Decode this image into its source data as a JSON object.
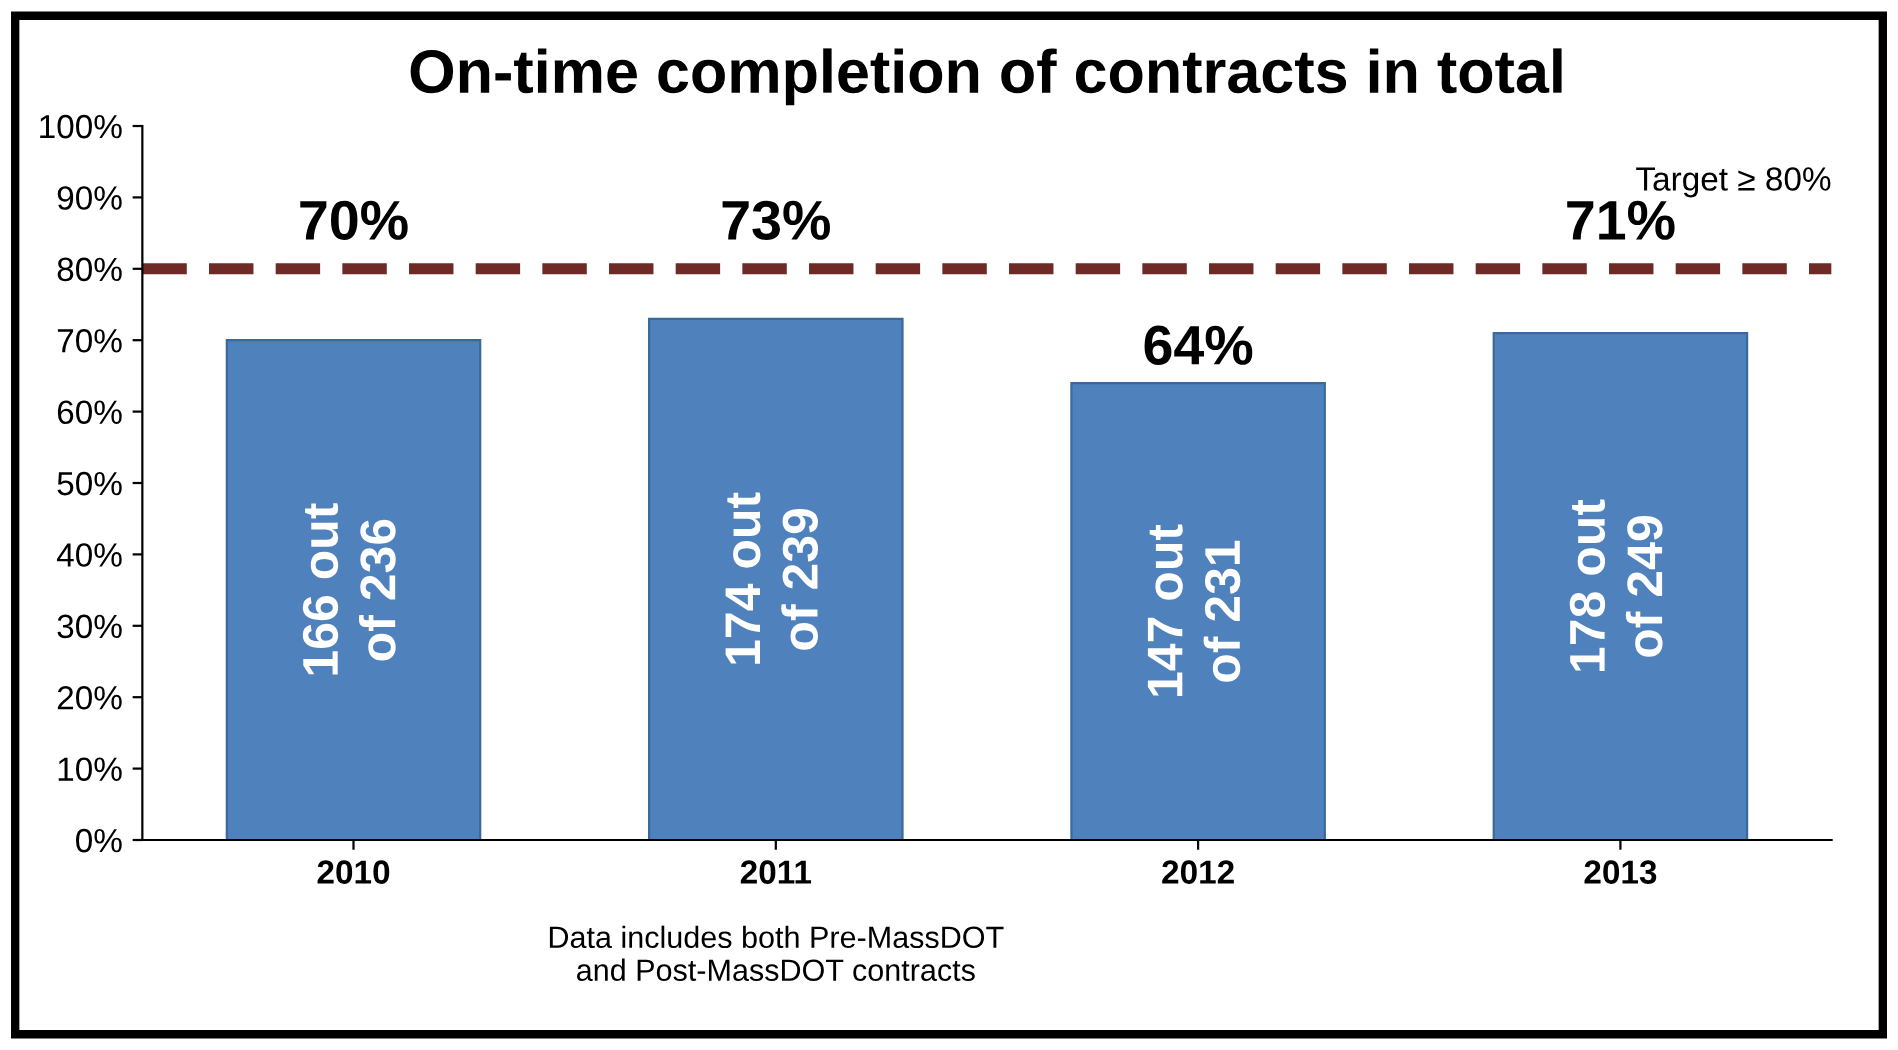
{
  "chart_data": {
    "type": "bar",
    "title": "On-time completion of contracts in total",
    "categories": [
      "2010",
      "2011",
      "2012",
      "2013"
    ],
    "values": [
      70,
      73,
      64,
      71
    ],
    "value_labels": [
      "70%",
      "73%",
      "64%",
      "71%"
    ],
    "color": "#4f81bd",
    "ylim": [
      0,
      100
    ],
    "yticks": [
      {
        "value": 0,
        "label": "0%"
      },
      {
        "value": 10,
        "label": "10%"
      },
      {
        "value": 20,
        "label": "20%"
      },
      {
        "value": 30,
        "label": "30%"
      },
      {
        "value": 40,
        "label": "40%"
      },
      {
        "value": 50,
        "label": "50%"
      },
      {
        "value": 60,
        "label": "60%"
      },
      {
        "value": 70,
        "label": "70%"
      },
      {
        "value": 80,
        "label": "80%"
      },
      {
        "value": 90,
        "label": "90%"
      },
      {
        "value": 100,
        "label": "100%"
      }
    ],
    "ref_lines": [
      {
        "axis": "y",
        "value": 80,
        "label": "Target ≥ 80%",
        "color": "#6e2a26",
        "line_style": "dashed"
      }
    ],
    "annotations": [
      "166 out\nof 236",
      "174 out\nof 239",
      "147 out\nof 231",
      "178 out\nof 249",
      "Data includes both Pre-MassDOT\nand Post-MassDOT contracts"
    ],
    "grid": false,
    "legend": false
  }
}
